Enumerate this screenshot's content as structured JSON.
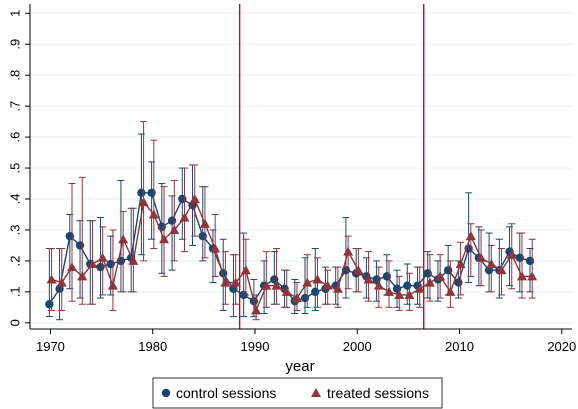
{
  "chart_data": {
    "type": "scatter",
    "title": "",
    "xlabel": "year",
    "ylabel": "",
    "xlim": [
      1968,
      2021
    ],
    "ylim": [
      -0.02,
      1.03
    ],
    "x_ticks": [
      1970,
      1980,
      1990,
      2000,
      2010,
      2020
    ],
    "x_tick_labels": [
      "1970",
      "1980",
      "1990",
      "2000",
      "2010",
      "2020"
    ],
    "y_ticks": [
      0,
      0.1,
      0.2,
      0.3,
      0.4,
      0.5,
      0.6,
      0.7,
      0.8,
      0.9,
      1
    ],
    "y_tick_labels": [
      "0",
      ".1",
      ".2",
      ".3",
      ".4",
      ".5",
      ".6",
      ".7",
      ".8",
      ".9",
      "1"
    ],
    "grid": true,
    "legend_position": "bottom",
    "vertical_lines": [
      1988.5,
      2006.5
    ],
    "colors": {
      "control": "#1a476f",
      "treated": "#90353b",
      "vline": "#c10534",
      "grid": "#eaf2f3",
      "axis": "#000000"
    },
    "series": [
      {
        "name": "control sessions",
        "marker": "circle",
        "x": [
          1970,
          1971,
          1972,
          1973,
          1974,
          1975,
          1976,
          1977,
          1978,
          1979,
          1980,
          1981,
          1982,
          1983,
          1984,
          1985,
          1986,
          1987,
          1988,
          1989,
          1990,
          1991,
          1992,
          1993,
          1994,
          1995,
          1996,
          1997,
          1998,
          1999,
          2000,
          2001,
          2002,
          2003,
          2004,
          2005,
          2006,
          2007,
          2008,
          2009,
          2010,
          2011,
          2012,
          2013,
          2014,
          2015,
          2016,
          2017
        ],
        "y": [
          0.06,
          0.11,
          0.28,
          0.25,
          0.19,
          0.18,
          0.19,
          0.2,
          0.21,
          0.42,
          0.42,
          0.31,
          0.33,
          0.4,
          0.38,
          0.28,
          0.24,
          0.16,
          0.11,
          0.09,
          0.07,
          0.12,
          0.14,
          0.11,
          0.07,
          0.08,
          0.1,
          0.11,
          0.12,
          0.17,
          0.16,
          0.15,
          0.14,
          0.15,
          0.11,
          0.12,
          0.12,
          0.16,
          0.14,
          0.17,
          0.13,
          0.24,
          0.21,
          0.17,
          0.17,
          0.23,
          0.21,
          0.2
        ],
        "lower": [
          0.02,
          0.01,
          0.11,
          0.08,
          0.06,
          0.08,
          0.09,
          0.1,
          0.1,
          0.22,
          0.27,
          0.16,
          0.17,
          0.27,
          0.25,
          0.2,
          0.13,
          0.04,
          0.02,
          0.02,
          0.02,
          0.03,
          0.06,
          0.05,
          0.03,
          0.03,
          0.04,
          0.06,
          0.06,
          0.08,
          0.1,
          0.08,
          0.07,
          0.09,
          0.05,
          0.06,
          0.06,
          0.08,
          0.07,
          0.09,
          0.08,
          0.13,
          0.12,
          0.1,
          0.08,
          0.12,
          0.1,
          0.1
        ],
        "upper": [
          0.24,
          0.24,
          0.35,
          0.33,
          0.33,
          0.34,
          0.28,
          0.46,
          0.37,
          0.61,
          0.52,
          0.45,
          0.41,
          0.5,
          0.51,
          0.44,
          0.3,
          0.27,
          0.22,
          0.29,
          0.14,
          0.2,
          0.23,
          0.17,
          0.14,
          0.21,
          0.24,
          0.18,
          0.18,
          0.34,
          0.24,
          0.21,
          0.2,
          0.22,
          0.17,
          0.19,
          0.18,
          0.23,
          0.2,
          0.25,
          0.2,
          0.42,
          0.31,
          0.29,
          0.27,
          0.31,
          0.29,
          0.24
        ]
      },
      {
        "name": "treated sessions",
        "marker": "triangle",
        "x": [
          1970,
          1971,
          1972,
          1973,
          1974,
          1975,
          1976,
          1977,
          1978,
          1979,
          1980,
          1981,
          1982,
          1983,
          1984,
          1985,
          1986,
          1987,
          1988,
          1989,
          1990,
          1991,
          1992,
          1993,
          1994,
          1995,
          1996,
          1997,
          1998,
          1999,
          2000,
          2001,
          2002,
          2003,
          2004,
          2005,
          2006,
          2007,
          2008,
          2009,
          2010,
          2011,
          2012,
          2013,
          2014,
          2015,
          2016,
          2017
        ],
        "y": [
          0.14,
          0.13,
          0.18,
          0.15,
          0.19,
          0.21,
          0.12,
          0.27,
          0.2,
          0.39,
          0.35,
          0.27,
          0.3,
          0.34,
          0.4,
          0.32,
          0.24,
          0.13,
          0.13,
          0.17,
          0.04,
          0.12,
          0.12,
          0.1,
          0.08,
          0.13,
          0.14,
          0.12,
          0.11,
          0.23,
          0.17,
          0.14,
          0.12,
          0.1,
          0.09,
          0.09,
          0.11,
          0.13,
          0.15,
          0.1,
          0.19,
          0.28,
          0.21,
          0.19,
          0.17,
          0.22,
          0.15,
          0.15
        ],
        "lower": [
          0.04,
          0.04,
          0.07,
          0.06,
          0.06,
          0.09,
          0.04,
          0.1,
          0.1,
          0.2,
          0.24,
          0.15,
          0.2,
          0.23,
          0.28,
          0.21,
          0.15,
          0.06,
          0.06,
          0.09,
          0.01,
          0.05,
          0.06,
          0.05,
          0.04,
          0.05,
          0.05,
          0.06,
          0.05,
          0.11,
          0.1,
          0.07,
          0.05,
          0.05,
          0.04,
          0.04,
          0.05,
          0.07,
          0.08,
          0.05,
          0.09,
          0.15,
          0.12,
          0.1,
          0.09,
          0.11,
          0.08,
          0.08
        ],
        "upper": [
          0.24,
          0.24,
          0.45,
          0.47,
          0.33,
          0.31,
          0.3,
          0.36,
          0.37,
          0.65,
          0.59,
          0.44,
          0.46,
          0.5,
          0.51,
          0.44,
          0.35,
          0.23,
          0.22,
          0.27,
          0.09,
          0.23,
          0.24,
          0.17,
          0.13,
          0.22,
          0.21,
          0.17,
          0.18,
          0.28,
          0.24,
          0.23,
          0.18,
          0.2,
          0.15,
          0.16,
          0.18,
          0.22,
          0.22,
          0.2,
          0.26,
          0.32,
          0.3,
          0.25,
          0.24,
          0.32,
          0.29,
          0.27
        ]
      }
    ]
  }
}
